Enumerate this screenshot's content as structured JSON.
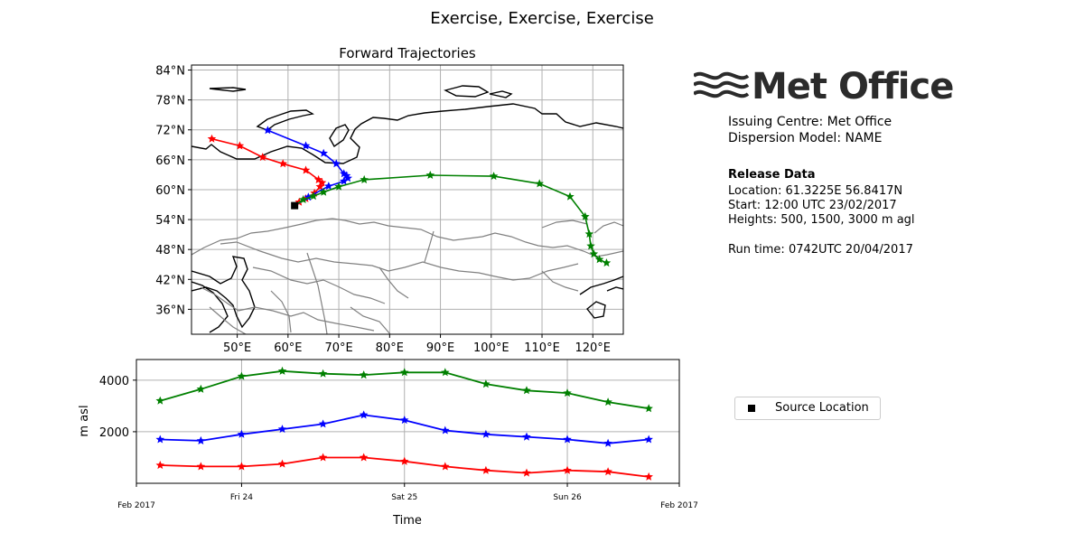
{
  "header": {
    "suptitle": "Exercise, Exercise, Exercise"
  },
  "logo": {
    "text": "Met Office"
  },
  "info": {
    "issuing_centre": "Issuing Centre: Met Office",
    "dispersion_model": "Dispersion Model: NAME",
    "release_heading": "Release Data",
    "location": "Location: 61.3225E  56.8417N",
    "start": "Start: 12:00 UTC 23/02/2017",
    "heights": "Heights: 500, 1500, 3000 m agl",
    "run_time": "Run time: 0742UTC 20/04/2017"
  },
  "legend": {
    "label": "Source Location"
  },
  "colors": {
    "red": "#ff0000",
    "blue": "#0000ff",
    "green": "#008000",
    "grid": "#b0b0b0",
    "border_lines": "#808080"
  },
  "chart_data": [
    {
      "type": "line",
      "title": "Forward Trajectories",
      "xlim": [
        41,
        126
      ],
      "ylim": [
        31,
        85
      ],
      "x_ticks": [
        50,
        60,
        70,
        80,
        90,
        100,
        110,
        120
      ],
      "x_tick_labels": [
        "50°E",
        "60°E",
        "70°E",
        "80°E",
        "90°E",
        "100°E",
        "110°E",
        "120°E"
      ],
      "y_ticks": [
        36,
        42,
        48,
        54,
        60,
        66,
        72,
        78,
        84
      ],
      "y_tick_labels": [
        "36°N",
        "42°N",
        "48°N",
        "54°N",
        "60°N",
        "66°N",
        "72°N",
        "78°N",
        "84°N"
      ],
      "grid": true,
      "source_location": {
        "lon": 61.3,
        "lat": 56.8
      },
      "series": [
        {
          "color": "#ff0000",
          "lon": [
            61.3,
            62.2,
            63.5,
            65.2,
            66.3,
            66.7,
            66.0,
            63.5,
            59.0,
            55.0,
            50.5,
            45.0
          ],
          "lat": [
            56.8,
            57.5,
            58.2,
            59.3,
            60.6,
            61.4,
            62.0,
            63.9,
            65.2,
            66.5,
            68.8,
            70.2
          ]
        },
        {
          "color": "#0000ff",
          "lon": [
            61.3,
            64.0,
            68.0,
            71.0,
            71.8,
            71.5,
            71.0,
            69.5,
            67.0,
            63.5,
            56.0
          ],
          "lat": [
            56.8,
            58.5,
            60.7,
            61.7,
            62.3,
            62.8,
            63.2,
            65.2,
            67.3,
            68.8,
            71.9
          ]
        },
        {
          "color": "#008000",
          "lon": [
            61.3,
            63.0,
            65.0,
            67.0,
            70.0,
            75.0,
            88.0,
            100.5,
            109.5,
            115.5,
            118.5,
            119.3,
            119.6,
            120.2,
            121.3,
            122.7
          ],
          "lat": [
            56.8,
            58.0,
            58.7,
            59.5,
            60.6,
            62.0,
            62.9,
            62.7,
            61.2,
            58.6,
            54.6,
            51.1,
            48.7,
            47.1,
            46.0,
            45.3
          ]
        }
      ]
    },
    {
      "type": "line",
      "xlabel": "Time",
      "ylabel": "m asl",
      "xlim": [
        0,
        80
      ],
      "ylim": [
        0,
        4800
      ],
      "y_ticks": [
        2000,
        4000
      ],
      "y_tick_labels": [
        "2000",
        "4000"
      ],
      "x_ticks": [
        0,
        15.5,
        39.5,
        63.5,
        80
      ],
      "x_tick_labels": [
        "Feb 2017",
        "Fri 24",
        "Sat 25",
        "Sun 26",
        "Feb 2017"
      ],
      "grid": true,
      "series": [
        {
          "color": "#ff0000",
          "x": [
            3.5,
            9.5,
            15.5,
            21.5,
            27.5,
            33.5,
            39.5,
            45.5,
            51.5,
            57.5,
            63.5,
            69.5,
            75.5
          ],
          "y": [
            700,
            650,
            650,
            750,
            1000,
            1000,
            850,
            650,
            500,
            400,
            500,
            450,
            250
          ]
        },
        {
          "color": "#0000ff",
          "x": [
            3.5,
            9.5,
            15.5,
            21.5,
            27.5,
            33.5,
            39.5,
            45.5,
            51.5,
            57.5,
            63.5,
            69.5,
            75.5
          ],
          "y": [
            1700,
            1650,
            1900,
            2100,
            2300,
            2650,
            2450,
            2050,
            1900,
            1800,
            1700,
            1550,
            1700
          ]
        },
        {
          "color": "#008000",
          "x": [
            3.5,
            9.5,
            15.5,
            21.5,
            27.5,
            33.5,
            39.5,
            45.5,
            51.5,
            57.5,
            63.5,
            69.5,
            75.5
          ],
          "y": [
            3200,
            3650,
            4150,
            4350,
            4250,
            4200,
            4300,
            4300,
            3850,
            3600,
            3500,
            3150,
            2900
          ]
        }
      ]
    }
  ]
}
